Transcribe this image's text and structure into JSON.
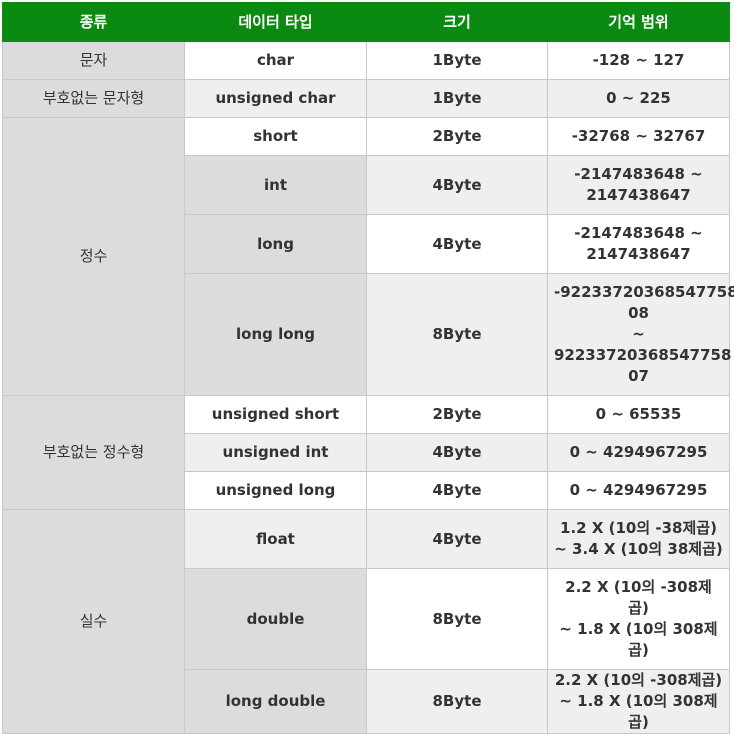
{
  "header": [
    "종류",
    "데이터 타입",
    "크기",
    "기억 범위"
  ],
  "groups": [
    {
      "kind": "문자",
      "rows": [
        {
          "type": "char",
          "size": "1Byte",
          "range": [
            "-128 ~ 127"
          ]
        }
      ]
    },
    {
      "kind": "부호없는 문자형",
      "rows": [
        {
          "type": "unsigned char",
          "size": "1Byte",
          "range": [
            "0 ~ 225"
          ]
        }
      ]
    },
    {
      "kind": "정수",
      "rows": [
        {
          "type": "short",
          "size": "2Byte",
          "range": [
            "-32768 ~ 32767"
          ]
        },
        {
          "type": "int",
          "size": "4Byte",
          "range": [
            "-2147483648 ~",
            "2147438647"
          ]
        },
        {
          "type": "long",
          "size": "4Byte",
          "range": [
            "-2147483648 ~",
            "2147438647"
          ]
        },
        {
          "type": "long long",
          "size": "8Byte",
          "range": [
            "-92233720368547758",
            "08",
            "~",
            "92233720368547758",
            "07"
          ]
        }
      ]
    },
    {
      "kind": "부호없는 정수형",
      "rows": [
        {
          "type": "unsigned short",
          "size": "2Byte",
          "range": [
            "0 ~ 65535"
          ]
        },
        {
          "type": "unsigned int",
          "size": "4Byte",
          "range": [
            "0 ~ 4294967295"
          ]
        },
        {
          "type": "unsigned long",
          "size": "4Byte",
          "range": [
            "0 ~ 4294967295"
          ]
        }
      ]
    },
    {
      "kind": "실수",
      "rows": [
        {
          "type": "float",
          "size": "4Byte",
          "range": [
            "1.2 X (10의 -38제곱)",
            "~ 3.4 X (10의 38제곱)"
          ]
        },
        {
          "type": "double",
          "size": "8Byte",
          "range": [
            "2.2 X (10의 -308제",
            "곱)",
            "~ 1.8 X (10의 308제",
            "곱)"
          ]
        },
        {
          "type": "long double",
          "size": "8Byte",
          "range": [
            "2.2 X (10의 -308제곱)",
            "~ 1.8 X (10의 308제곱)"
          ]
        }
      ]
    }
  ]
}
